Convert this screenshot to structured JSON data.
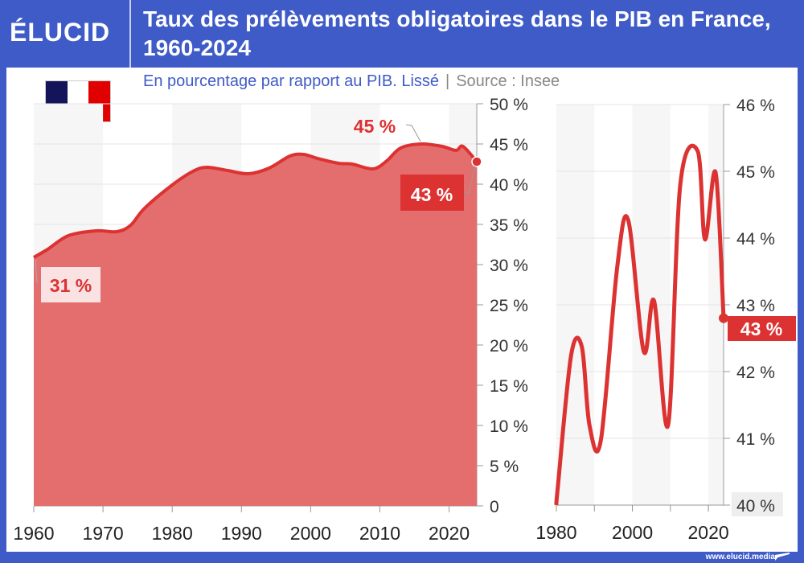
{
  "header": {
    "logo": "ÉLUCID",
    "title": "Taux des prélèvements obligatoires dans le PIB en France, 1960-2024"
  },
  "subtitle": {
    "text": "En pourcentage par rapport au PIB. Lissé",
    "separator": "|",
    "source": "Source : Insee"
  },
  "footer": {
    "url": "www.elucid.media"
  },
  "flag_colors": [
    "#14145a",
    "#ffffff",
    "#e00000"
  ],
  "colors": {
    "line": "#dc3232",
    "area": "#e46e6e",
    "brand": "#3f5bc8"
  },
  "chart_data": [
    {
      "type": "area",
      "xlim": [
        1960,
        2024
      ],
      "ylim": [
        0,
        50
      ],
      "x_ticks": [
        "1960",
        "1970",
        "1980",
        "1990",
        "2000",
        "2010",
        "2020"
      ],
      "y_ticks": [
        "0",
        "5 %",
        "10 %",
        "15 %",
        "20 %",
        "25 %",
        "30 %",
        "35 %",
        "40 %",
        "45 %",
        "50 %"
      ],
      "grid": true,
      "x": [
        1960,
        1962,
        1965,
        1969,
        1972,
        1974,
        1976,
        1980,
        1983,
        1985,
        1988,
        1991,
        1994,
        1997,
        1999,
        2001,
        2004,
        2006,
        2009,
        2011,
        2013,
        2016,
        2019,
        2021,
        2022,
        2024
      ],
      "y": [
        30.9,
        31.9,
        33.6,
        34.2,
        34.1,
        34.9,
        37.0,
        39.9,
        41.6,
        42.1,
        41.7,
        41.3,
        42.0,
        43.5,
        43.7,
        43.2,
        42.6,
        42.5,
        41.9,
        42.9,
        44.5,
        45.0,
        44.7,
        44.2,
        44.7,
        42.8
      ],
      "annotations": [
        {
          "x": 1960,
          "y": 30.9,
          "label": "31 %"
        },
        {
          "x": 2016,
          "y": 45.0,
          "label": "45 %"
        },
        {
          "x": 2024,
          "y": 42.8,
          "label": "43 %"
        }
      ]
    },
    {
      "type": "line",
      "xlim": [
        1980,
        2024
      ],
      "ylim": [
        40,
        46
      ],
      "x_ticks": [
        "1980",
        "2000",
        "2020"
      ],
      "y_ticks": [
        "40 %",
        "41 %",
        "42 %",
        "43 %",
        "44 %",
        "45 %",
        "46 %"
      ],
      "grid": true,
      "x": [
        1980,
        1980.4,
        1983.9,
        1986.7,
        1988.7,
        1991.7,
        1996,
        1998.9,
        2003,
        2005.7,
        2009.4,
        2012.6,
        2017.2,
        2019.1,
        2021.9,
        2024
      ],
      "y": [
        40.0,
        40.28,
        42.25,
        42.37,
        41.2,
        40.97,
        43.56,
        44.27,
        42.3,
        43.06,
        41.2,
        44.8,
        45.3,
        43.98,
        44.98,
        42.8
      ],
      "annotations": [
        {
          "x": 2024,
          "y": 42.8,
          "label": "43 %"
        }
      ]
    }
  ]
}
